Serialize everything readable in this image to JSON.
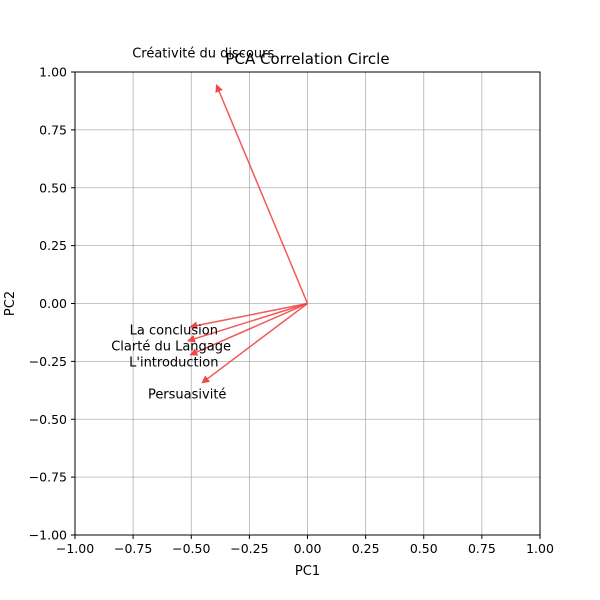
{
  "chart_data": {
    "type": "line",
    "title": "PCA Correlation Circle",
    "xlabel": "PC1",
    "ylabel": "PC2",
    "xlim": [
      -1.0,
      1.0
    ],
    "ylim": [
      -1.0,
      1.0
    ],
    "x_ticks": [
      "−1.00",
      "−0.75",
      "−0.50",
      "−0.25",
      "0.00",
      "0.25",
      "0.50",
      "0.75",
      "1.00"
    ],
    "y_ticks": [
      "−1.00",
      "−0.75",
      "−0.50",
      "−0.25",
      "0.00",
      "0.25",
      "0.50",
      "0.75",
      "1.00"
    ],
    "grid": true,
    "arrow_color": "#f04848",
    "vectors": [
      {
        "label": "Créativité du discours",
        "x": -0.39,
        "y": 0.94
      },
      {
        "label": "La conclusion",
        "x": -0.5,
        "y": -0.1
      },
      {
        "label": "Clarté du Langage",
        "x": -0.51,
        "y": -0.16
      },
      {
        "label": "L'introduction",
        "x": -0.5,
        "y": -0.22
      },
      {
        "label": "Persuasivité",
        "x": -0.45,
        "y": -0.34
      }
    ]
  }
}
